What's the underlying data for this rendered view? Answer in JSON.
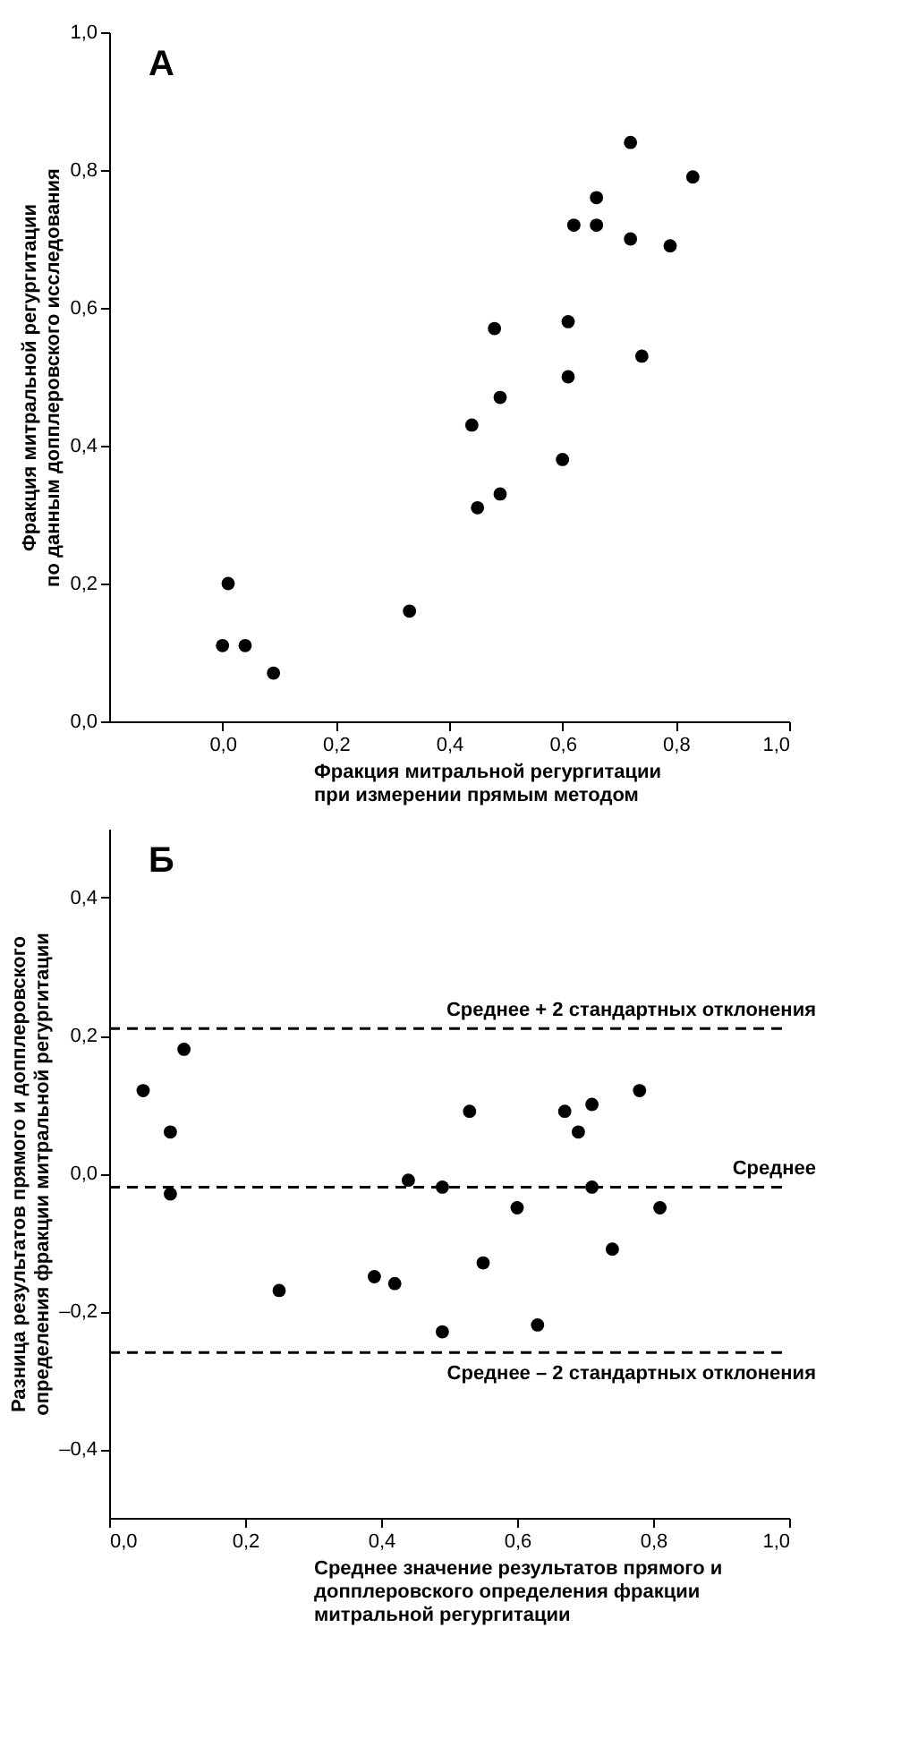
{
  "chart_data": [
    {
      "type": "scatter",
      "title": "А",
      "xlabel": "Фракция митральной регургитации\nпри измерении прямым методом",
      "ylabel": "Фракция митральной регургитации\nпо данным допплеровского исследования",
      "marker": "circle",
      "grid": false,
      "xlim": [
        -0.2,
        1.0
      ],
      "ylim": [
        0,
        1.0
      ],
      "xticks": [
        {
          "value": 0,
          "label": "0,0"
        },
        {
          "value": 0.2,
          "label": "0,2"
        },
        {
          "value": 0.4,
          "label": "0,4"
        },
        {
          "value": 0.6,
          "label": "0,6"
        },
        {
          "value": 0.8,
          "label": "0,8"
        },
        {
          "value": 1.0,
          "label": "1,0"
        }
      ],
      "yticks": [
        {
          "value": 0,
          "label": "0,0"
        },
        {
          "value": 0.2,
          "label": "0,2"
        },
        {
          "value": 0.4,
          "label": "0,4"
        },
        {
          "value": 0.6,
          "label": "0,6"
        },
        {
          "value": 0.8,
          "label": "0,8"
        },
        {
          "value": 1.0,
          "label": "1,0"
        }
      ],
      "series": [
        {
          "color": "#000000",
          "x": [
            0.0,
            0.01,
            0.04,
            0.09,
            0.33,
            0.44,
            0.45,
            0.49,
            0.49,
            0.6,
            0.48,
            0.61,
            0.61,
            0.74,
            0.62,
            0.66,
            0.66,
            0.72,
            0.72,
            0.79,
            0.83
          ],
          "values": [
            0.11,
            0.2,
            0.11,
            0.07,
            0.16,
            0.43,
            0.31,
            0.33,
            0.47,
            0.38,
            0.57,
            0.58,
            0.5,
            0.53,
            0.72,
            0.72,
            0.76,
            0.84,
            0.7,
            0.69,
            0.79
          ]
        }
      ]
    },
    {
      "type": "scatter",
      "title": "Б",
      "xlabel": "Среднее значение результатов прямого и\nдопплеровского определения фракции\nмитральной регургитации",
      "ylabel": "Разница результатов прямого и допплеровского\nопределения фракции митральной регургитации",
      "marker": "circle",
      "grid": false,
      "xlim": [
        0,
        1.0
      ],
      "ylim": [
        -0.5,
        0.5
      ],
      "xticks": [
        {
          "value": 0,
          "label": "0,0"
        },
        {
          "value": 0.2,
          "label": "0,2"
        },
        {
          "value": 0.4,
          "label": "0,4"
        },
        {
          "value": 0.6,
          "label": "0,6"
        },
        {
          "value": 0.8,
          "label": "0,8"
        },
        {
          "value": 1.0,
          "label": "1,0"
        }
      ],
      "yticks": [
        {
          "value": -0.4,
          "label": "–0,4"
        },
        {
          "value": -0.2,
          "label": "–0,2"
        },
        {
          "value": 0,
          "label": "0,0"
        },
        {
          "value": 0.2,
          "label": "0,2"
        },
        {
          "value": 0.4,
          "label": "0,4"
        }
      ],
      "ref_lines": [
        {
          "axis": "y",
          "value": 0.21,
          "label": "Среднее + 2 стандартных отклонения",
          "line_style": "dashed"
        },
        {
          "axis": "y",
          "value": -0.02,
          "label": "Среднее",
          "line_style": "dashed"
        },
        {
          "axis": "y",
          "value": -0.26,
          "label": "Среднее – 2 стандартных отклонения",
          "line_style": "dashed"
        }
      ],
      "series": [
        {
          "color": "#000000",
          "x": [
            0.05,
            0.09,
            0.11,
            0.09,
            0.44,
            0.49,
            0.53,
            0.6,
            0.67,
            0.69,
            0.71,
            0.71,
            0.78,
            0.81,
            0.25,
            0.39,
            0.42,
            0.49,
            0.55,
            0.63,
            0.74
          ],
          "values": [
            0.12,
            0.06,
            0.18,
            -0.03,
            -0.01,
            -0.02,
            0.09,
            -0.05,
            0.09,
            0.06,
            0.1,
            -0.02,
            0.12,
            -0.05,
            -0.17,
            -0.15,
            -0.16,
            -0.23,
            -0.13,
            -0.22,
            -0.11
          ]
        }
      ]
    }
  ]
}
